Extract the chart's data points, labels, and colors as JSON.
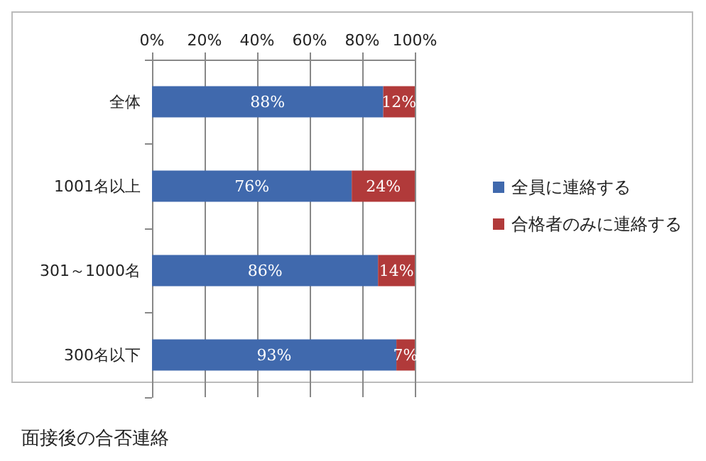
{
  "chart_data": {
    "type": "bar",
    "orientation": "horizontal",
    "stacked": true,
    "categories": [
      "全体",
      "1001名以上",
      "301～1000名",
      "300名以下"
    ],
    "series": [
      {
        "name": "全員に連絡する",
        "color": "#4069ad",
        "values": [
          88,
          76,
          86,
          93
        ],
        "value_labels": [
          "88%",
          "76%",
          "86%",
          "93%"
        ]
      },
      {
        "name": "合格者のみに連絡する",
        "color": "#b13a3a",
        "values": [
          12,
          24,
          14,
          7
        ],
        "value_labels": [
          "12%",
          "24%",
          "14%",
          "7%"
        ]
      }
    ],
    "xlim": [
      0,
      100
    ],
    "xticks": [
      {
        "value": 0,
        "label": "0%"
      },
      {
        "value": 20,
        "label": "20%"
      },
      {
        "value": 40,
        "label": "40%"
      },
      {
        "value": 60,
        "label": "60%"
      },
      {
        "value": 80,
        "label": "80%"
      },
      {
        "value": 100,
        "label": "100%"
      }
    ],
    "grid": "x",
    "legend": "right",
    "annotations": [
      "面接後の合否連絡"
    ]
  }
}
